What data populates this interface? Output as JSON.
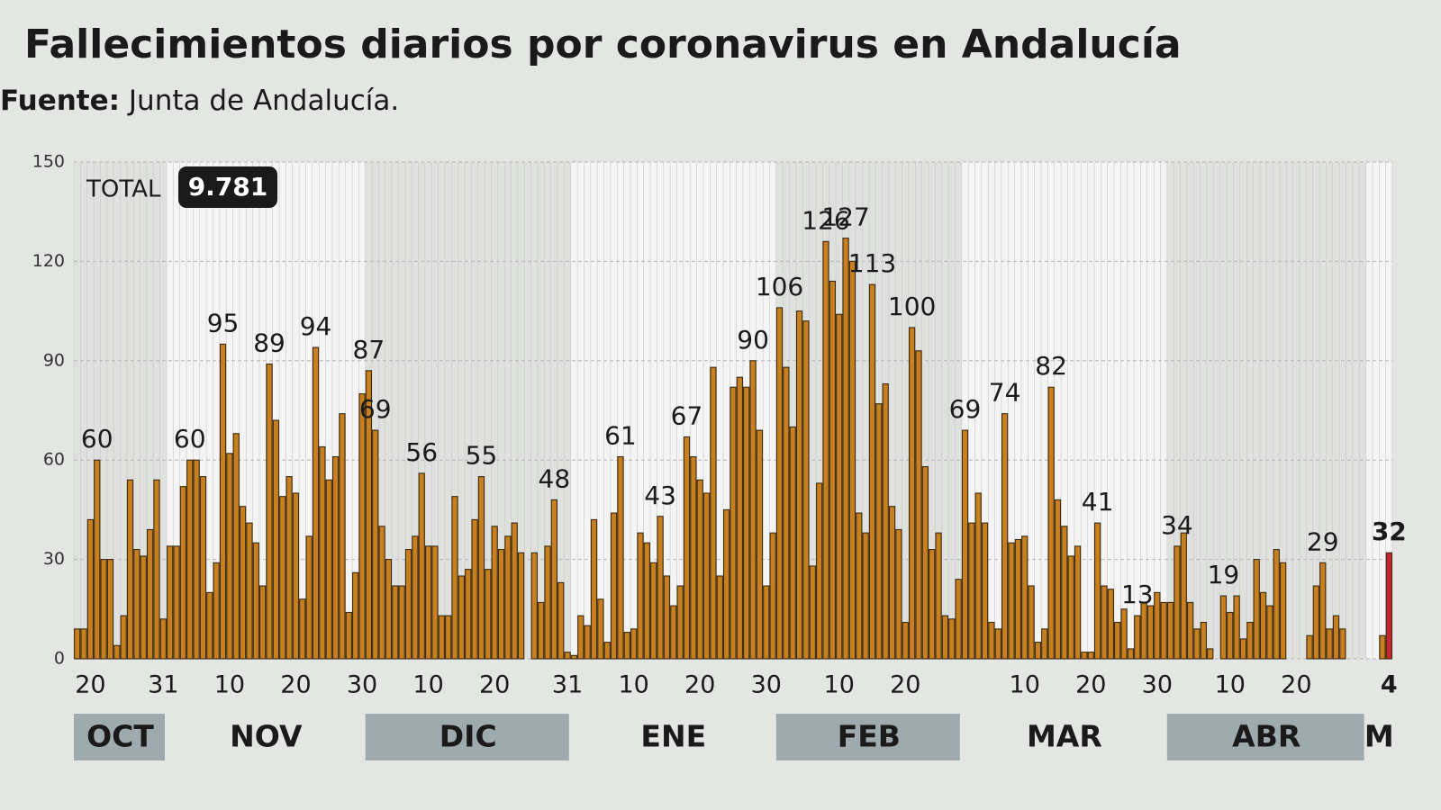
{
  "chart_data": {
    "type": "bar",
    "title": "Fallecimientos diarios por coronavirus en Andalucía",
    "source_label": "Fuente:",
    "source": "Junta de Andalucía.",
    "total_label": "TOTAL",
    "total": "9.781",
    "categories": [
      null,
      null,
      "20",
      null,
      null,
      null,
      null,
      null,
      null,
      null,
      null,
      null,
      null,
      "31",
      null,
      null,
      null,
      null,
      null,
      null,
      null,
      null,
      null,
      "10",
      null,
      null,
      null,
      null,
      null,
      null,
      null,
      null,
      null,
      "20",
      null,
      null,
      null,
      null,
      null,
      null,
      null,
      null,
      null,
      "30",
      null,
      null,
      null,
      null,
      null,
      null,
      null,
      null,
      null,
      "10",
      null,
      null,
      null,
      null,
      null,
      null,
      null,
      null,
      null,
      "20",
      null,
      null,
      null,
      null,
      null,
      null,
      null,
      null,
      null,
      null,
      "31",
      null,
      null,
      null,
      null,
      null,
      null,
      null,
      null,
      null,
      "10",
      null,
      null,
      null,
      null,
      null,
      null,
      null,
      null,
      null,
      "20",
      null,
      null,
      null,
      null,
      null,
      null,
      null,
      null,
      null,
      "30",
      null,
      null,
      null,
      null,
      null,
      null,
      null,
      null,
      null,
      null,
      "10",
      null,
      null,
      null,
      null,
      null,
      null,
      null,
      null,
      null,
      "20",
      null,
      null,
      null,
      null,
      null,
      null,
      null,
      null,
      null,
      null,
      null,
      null,
      null,
      null,
      null,
      null,
      null,
      "10",
      null,
      null,
      null,
      null,
      null,
      null,
      null,
      null,
      null,
      "20",
      null,
      null,
      null,
      null,
      null,
      null,
      null,
      null,
      null,
      "30",
      null,
      null,
      null,
      null,
      null,
      null,
      null,
      null,
      null,
      null,
      "10",
      null,
      null,
      null,
      null,
      null,
      null,
      null,
      null,
      null,
      "20",
      null,
      null,
      null,
      null,
      null,
      null,
      null,
      null,
      null,
      null,
      null,
      null,
      null,
      "4"
    ],
    "values": [
      9,
      9,
      42,
      60,
      30,
      30,
      4,
      13,
      54,
      33,
      31,
      39,
      54,
      12,
      34,
      34,
      52,
      60,
      60,
      55,
      20,
      29,
      95,
      62,
      68,
      46,
      41,
      35,
      22,
      89,
      72,
      49,
      55,
      50,
      18,
      37,
      94,
      64,
      54,
      61,
      74,
      14,
      26,
      80,
      87,
      69,
      40,
      30,
      22,
      22,
      33,
      37,
      56,
      34,
      34,
      13,
      13,
      49,
      25,
      27,
      42,
      55,
      27,
      40,
      33,
      37,
      41,
      32,
      0,
      32,
      17,
      34,
      48,
      23,
      2,
      1,
      13,
      10,
      42,
      18,
      5,
      44,
      61,
      8,
      9,
      38,
      35,
      29,
      43,
      25,
      16,
      22,
      67,
      61,
      54,
      50,
      88,
      25,
      45,
      82,
      85,
      82,
      90,
      69,
      22,
      38,
      106,
      88,
      70,
      105,
      102,
      28,
      53,
      126,
      114,
      104,
      127,
      120,
      44,
      38,
      113,
      77,
      83,
      46,
      39,
      11,
      100,
      93,
      58,
      33,
      38,
      13,
      12,
      24,
      69,
      41,
      50,
      41,
      11,
      9,
      74,
      35,
      36,
      37,
      22,
      5,
      9,
      82,
      48,
      40,
      31,
      34,
      2,
      2,
      41,
      22,
      21,
      11,
      15,
      3,
      13,
      17,
      16,
      20,
      17,
      17,
      34,
      38,
      17,
      9,
      11,
      3,
      0,
      19,
      14,
      19,
      6,
      11,
      30,
      20,
      16,
      33,
      29,
      0,
      0,
      0,
      7,
      22,
      29,
      9,
      13,
      9,
      0,
      0,
      0,
      0,
      0,
      7,
      32
    ],
    "label_indices": [
      3,
      17,
      22,
      29,
      36,
      44,
      45,
      52,
      61,
      72,
      82,
      88,
      92,
      102,
      106,
      113,
      116,
      120,
      126,
      134,
      140,
      147,
      154,
      160,
      166,
      173,
      188,
      198
    ],
    "highlight_index": 198,
    "color": "#c8801e",
    "highlight_color": "#c8262e",
    "months": [
      "OCT",
      "NOV",
      "DIC",
      "ENE",
      "FEB",
      "MAR",
      "ABR",
      "M"
    ],
    "ylim": [
      0,
      150
    ],
    "yticks": [
      0,
      30,
      60,
      90,
      120,
      150
    ],
    "grid": true
  }
}
